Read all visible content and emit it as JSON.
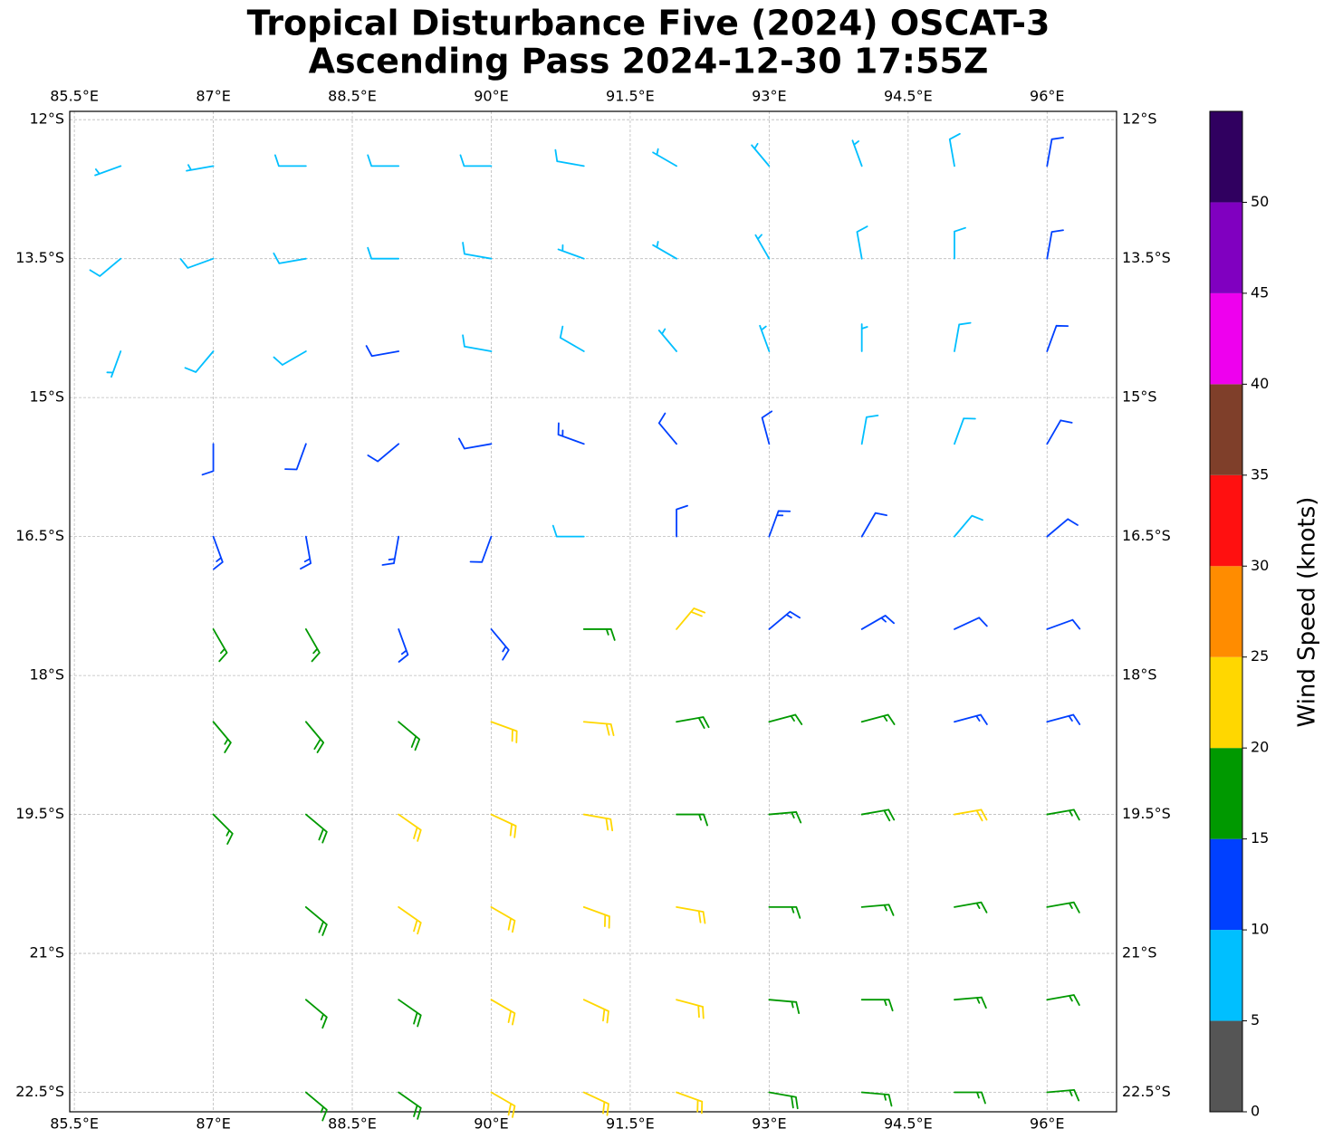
{
  "map": {
    "type": "wind-barbs",
    "title": [
      "Tropical Disturbance Five (2024) OSCAT-3",
      "Ascending Pass 2024-12-30 17:55Z"
    ],
    "xlim": [
      85.45,
      96.75
    ],
    "ylim": [
      -22.71,
      -11.91
    ],
    "xticks": [
      {
        "value": 85.5,
        "label": "85.5°E"
      },
      {
        "value": 87,
        "label": "87°E"
      },
      {
        "value": 88.5,
        "label": "88.5°E"
      },
      {
        "value": 90,
        "label": "90°E"
      },
      {
        "value": 91.5,
        "label": "91.5°E"
      },
      {
        "value": 93,
        "label": "93°E"
      },
      {
        "value": 94.5,
        "label": "94.5°E"
      },
      {
        "value": 96,
        "label": "96°E"
      }
    ],
    "yticks": [
      {
        "value": -12,
        "label": "12°S"
      },
      {
        "value": -13.5,
        "label": "13.5°S"
      },
      {
        "value": -15,
        "label": "15°S"
      },
      {
        "value": -16.5,
        "label": "16.5°S"
      },
      {
        "value": -18,
        "label": "18°S"
      },
      {
        "value": -19.5,
        "label": "19.5°S"
      },
      {
        "value": -21,
        "label": "21°S"
      },
      {
        "value": -22.5,
        "label": "22.5°S"
      }
    ],
    "grid": true,
    "barbs": {
      "lons": [
        86,
        87,
        88,
        89,
        90,
        91,
        92,
        93,
        94,
        95,
        96
      ],
      "lats": [
        -12.5,
        -13.5,
        -14.5,
        -15.5,
        -16.5,
        -17.5,
        -18.5,
        -19.5,
        -20.5,
        -21.5,
        -22.5
      ],
      "speed": [
        [
          7,
          7,
          8,
          8,
          8,
          8,
          7,
          6,
          7,
          8,
          11
        ],
        [
          8,
          8,
          9,
          9,
          8,
          7,
          7,
          6,
          8,
          9,
          12
        ],
        [
          6,
          8,
          9,
          10,
          9,
          8,
          7,
          6,
          6,
          8,
          11
        ],
        [
          null,
          12,
          12,
          12,
          12,
          13,
          12,
          10,
          8,
          8,
          10
        ],
        [
          null,
          14,
          14,
          13,
          12,
          8,
          12,
          13,
          10,
          9,
          10
        ],
        [
          null,
          16,
          16,
          14,
          14,
          16,
          20,
          14,
          13,
          12,
          12
        ],
        [
          null,
          17,
          18,
          18,
          20,
          22,
          18,
          16,
          15,
          13,
          14
        ],
        [
          null,
          17,
          19,
          21,
          22,
          22,
          17,
          17,
          18,
          20,
          17
        ],
        [
          null,
          null,
          18,
          21,
          22,
          21,
          20,
          17,
          17,
          17,
          17
        ],
        [
          null,
          null,
          17,
          19,
          21,
          21,
          20,
          17,
          17,
          16,
          16
        ],
        [
          null,
          null,
          17,
          18,
          20,
          21,
          20,
          18,
          17,
          16,
          16
        ]
      ],
      "direction": [
        [
          250,
          260,
          270,
          270,
          270,
          280,
          300,
          320,
          340,
          350,
          10
        ],
        [
          230,
          250,
          260,
          270,
          280,
          290,
          300,
          330,
          350,
          0,
          10
        ],
        [
          200,
          220,
          240,
          260,
          280,
          300,
          320,
          340,
          0,
          10,
          20
        ],
        [
          null,
          180,
          200,
          230,
          260,
          290,
          320,
          345,
          10,
          20,
          30
        ],
        [
          null,
          160,
          170,
          190,
          200,
          270,
          0,
          20,
          30,
          40,
          50
        ],
        [
          null,
          150,
          150,
          160,
          140,
          90,
          40,
          50,
          60,
          65,
          70
        ],
        [
          null,
          140,
          140,
          130,
          110,
          95,
          80,
          75,
          75,
          75,
          75
        ],
        [
          null,
          135,
          130,
          125,
          115,
          100,
          90,
          85,
          80,
          80,
          80
        ],
        [
          null,
          null,
          130,
          125,
          120,
          110,
          100,
          90,
          85,
          80,
          80
        ],
        [
          null,
          null,
          130,
          125,
          120,
          115,
          105,
          95,
          90,
          85,
          80
        ],
        [
          null,
          null,
          130,
          125,
          120,
          115,
          110,
          100,
          95,
          90,
          85
        ]
      ]
    },
    "colorbar": {
      "label": "Wind Speed (knots)",
      "ylim": [
        0,
        55
      ],
      "yticks": [
        0,
        5,
        10,
        15,
        20,
        25,
        30,
        35,
        40,
        45,
        50
      ],
      "colors": [
        "#555555",
        "#00bfff",
        "#0040ff",
        "#009900",
        "#ffd700",
        "#ff8c00",
        "#ff1010",
        "#7f3f2a",
        "#ee00ee",
        "#8000c0",
        "#300060"
      ]
    }
  }
}
